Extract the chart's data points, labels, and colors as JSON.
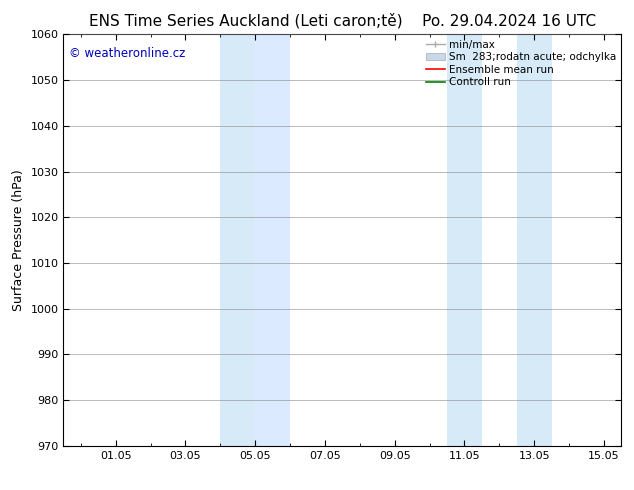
{
  "title_left": "ENS Time Series Auckland (Leti caron;tě)",
  "title_right": "Po. 29.04.2024 16 UTC",
  "ylabel": "Surface Pressure (hPa)",
  "ylim": [
    970,
    1060
  ],
  "yticks": [
    970,
    980,
    990,
    1000,
    1010,
    1020,
    1030,
    1040,
    1050,
    1060
  ],
  "xlim": [
    -0.5,
    15.5
  ],
  "xtick_labels": [
    "01.05",
    "03.05",
    "05.05",
    "07.05",
    "09.05",
    "11.05",
    "13.05",
    "15.05"
  ],
  "xtick_positions": [
    1,
    3,
    5,
    7,
    9,
    11,
    13,
    15
  ],
  "shaded_regions": [
    {
      "x_start": 4.0,
      "x_end": 5.0,
      "color": "#d6eaf8"
    },
    {
      "x_start": 5.0,
      "x_end": 6.0,
      "color": "#dbeafe"
    },
    {
      "x_start": 10.5,
      "x_end": 11.5,
      "color": "#d6eaf8"
    },
    {
      "x_start": 12.5,
      "x_end": 13.5,
      "color": "#d6eaf8"
    }
  ],
  "legend_labels": [
    "min/max",
    "Sm  283;rodatn acute; odchylka",
    "Ensemble mean run",
    "Controll run"
  ],
  "legend_colors": [
    "#aaaaaa",
    "#c8d8e8",
    "#ff0000",
    "#008000"
  ],
  "watermark_text": "© weatheronline.cz",
  "watermark_color": "#0000bb",
  "bg_color": "#ffffff",
  "plot_bg_color": "#ffffff",
  "border_color": "#000000",
  "grid_color": "#555555",
  "title_fontsize": 11,
  "ylabel_fontsize": 9,
  "tick_fontsize": 8,
  "legend_fontsize": 7.5,
  "watermark_fontsize": 8.5
}
